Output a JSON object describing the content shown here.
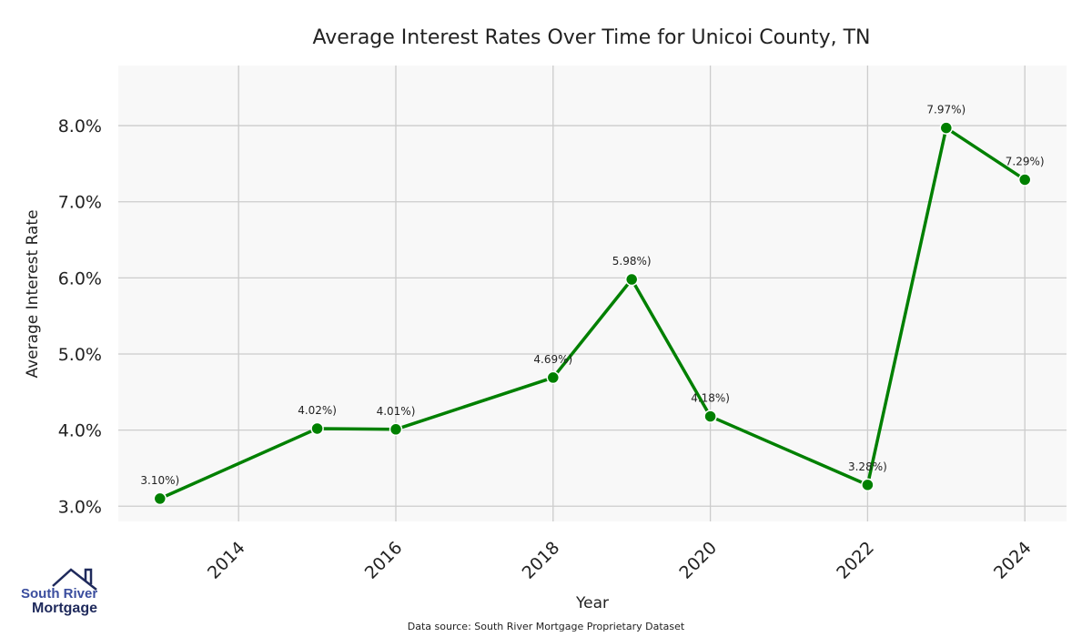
{
  "chart_data": {
    "type": "line",
    "title": "Average Interest Rates Over Time for Unicoi County, TN",
    "xlabel": "Year",
    "ylabel": "Average Interest Rate",
    "x": [
      2013,
      2015,
      2016,
      2018,
      2019,
      2020,
      2022,
      2023,
      2024
    ],
    "values": [
      3.1,
      4.02,
      4.01,
      4.69,
      5.98,
      4.18,
      3.28,
      7.97,
      7.29
    ],
    "data_labels": [
      "3.10%)",
      "4.02%)",
      "4.01%)",
      "4.69%)",
      "5.98%)",
      "4.18%)",
      "3.28%)",
      "7.97%)",
      "7.29%)"
    ],
    "xticks": [
      2014,
      2016,
      2018,
      2020,
      2022,
      2024
    ],
    "xtick_labels": [
      "2014",
      "2016",
      "2018",
      "2020",
      "2022",
      "2024"
    ],
    "yticks": [
      3,
      4,
      5,
      6,
      7,
      8
    ],
    "ytick_labels": [
      "3.0%",
      "4.0%",
      "5.0%",
      "6.0%",
      "7.0%",
      "8.0%"
    ],
    "xlim": [
      2012.47,
      2024.53
    ],
    "ylim": [
      2.8,
      8.79
    ],
    "grid": true,
    "colors": {
      "line": "#008000",
      "plot_bg": "#f8f8f8",
      "grid": "#cccccc"
    }
  },
  "logo": {
    "line1": "South River",
    "line2": "Mortgage"
  },
  "source": "Data source: South River Mortgage Proprietary Dataset"
}
